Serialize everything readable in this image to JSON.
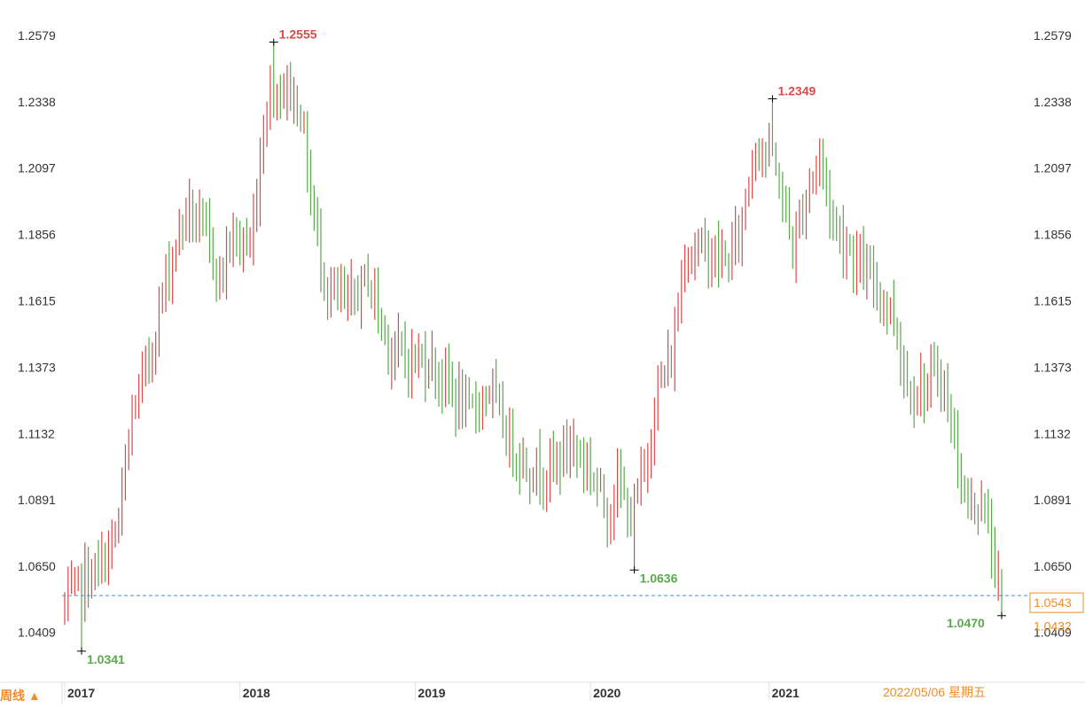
{
  "period_selector": {
    "label": "周线 ▲"
  },
  "status_date": "2022/05/06 星期五",
  "colors": {
    "up": "#d94b4b",
    "down": "#59a84c",
    "accent": "#f28c28",
    "ref_line": "#3d8fd9"
  },
  "chart_data": {
    "type": "ohlc",
    "title": "",
    "xlabel": "",
    "ylabel": "",
    "ylim": [
      1.026,
      1.265
    ],
    "y_ticks": [
      "1.2579",
      "1.2338",
      "1.2097",
      "1.1856",
      "1.1615",
      "1.1373",
      "1.1132",
      "1.0891",
      "1.0650",
      "1.0409"
    ],
    "x_ticks": [
      "2017",
      "2018",
      "2019",
      "2020",
      "2021"
    ],
    "current_price_label": "1.0543",
    "current_price": 1.0543,
    "low_price_label": "1.0432",
    "low_price": 1.0432,
    "annotations": [
      {
        "text": "1.2555",
        "value": 1.2555,
        "kind": "high"
      },
      {
        "text": "1.2349",
        "value": 1.2349,
        "kind": "high"
      },
      {
        "text": "1.0636",
        "value": 1.0636,
        "kind": "low"
      },
      {
        "text": "1.0341",
        "value": 1.0341,
        "kind": "low"
      },
      {
        "text": "1.0470",
        "value": 1.047,
        "kind": "low"
      }
    ],
    "anchors": [
      [
        0,
        1.05
      ],
      [
        6,
        1.06
      ],
      [
        11,
        1.065
      ],
      [
        16,
        1.08
      ],
      [
        20,
        1.12
      ],
      [
        25,
        1.14
      ],
      [
        30,
        1.17
      ],
      [
        36,
        1.195
      ],
      [
        42,
        1.185
      ],
      [
        46,
        1.17
      ],
      [
        50,
        1.185
      ],
      [
        55,
        1.18
      ],
      [
        60,
        1.235
      ],
      [
        66,
        1.24
      ],
      [
        70,
        1.23
      ],
      [
        74,
        1.19
      ],
      [
        78,
        1.165
      ],
      [
        84,
        1.16
      ],
      [
        90,
        1.17
      ],
      [
        96,
        1.145
      ],
      [
        102,
        1.14
      ],
      [
        108,
        1.14
      ],
      [
        114,
        1.13
      ],
      [
        120,
        1.12
      ],
      [
        126,
        1.13
      ],
      [
        132,
        1.11
      ],
      [
        138,
        1.1
      ],
      [
        144,
        1.1
      ],
      [
        150,
        1.11
      ],
      [
        156,
        1.1
      ],
      [
        161,
        1.085
      ],
      [
        164,
        1.095
      ],
      [
        168,
        1.083
      ],
      [
        172,
        1.1
      ],
      [
        176,
        1.13
      ],
      [
        180,
        1.14
      ],
      [
        184,
        1.18
      ],
      [
        190,
        1.18
      ],
      [
        196,
        1.175
      ],
      [
        200,
        1.185
      ],
      [
        205,
        1.22
      ],
      [
        208,
        1.215
      ],
      [
        212,
        1.205
      ],
      [
        216,
        1.18
      ],
      [
        220,
        1.2
      ],
      [
        224,
        1.215
      ],
      [
        228,
        1.19
      ],
      [
        233,
        1.18
      ],
      [
        238,
        1.17
      ],
      [
        242,
        1.165
      ],
      [
        246,
        1.155
      ],
      [
        250,
        1.13
      ],
      [
        255,
        1.13
      ],
      [
        260,
        1.135
      ],
      [
        264,
        1.11
      ],
      [
        268,
        1.085
      ],
      [
        272,
        1.09
      ],
      [
        276,
        1.065
      ],
      [
        278,
        1.052
      ]
    ],
    "pinned_bars": [
      {
        "i": 5,
        "h": 1.066,
        "l": 1.0341
      },
      {
        "i": 62,
        "h": 1.2555,
        "l": 1.228
      },
      {
        "i": 169,
        "h": 1.095,
        "l": 1.0636
      },
      {
        "i": 210,
        "h": 1.2349,
        "l": 1.214
      },
      {
        "i": 278,
        "h": 1.064,
        "l": 1.047
      }
    ],
    "bar_count": 279,
    "first_bar_date": "2017-01-02",
    "bar_interval": "week"
  }
}
